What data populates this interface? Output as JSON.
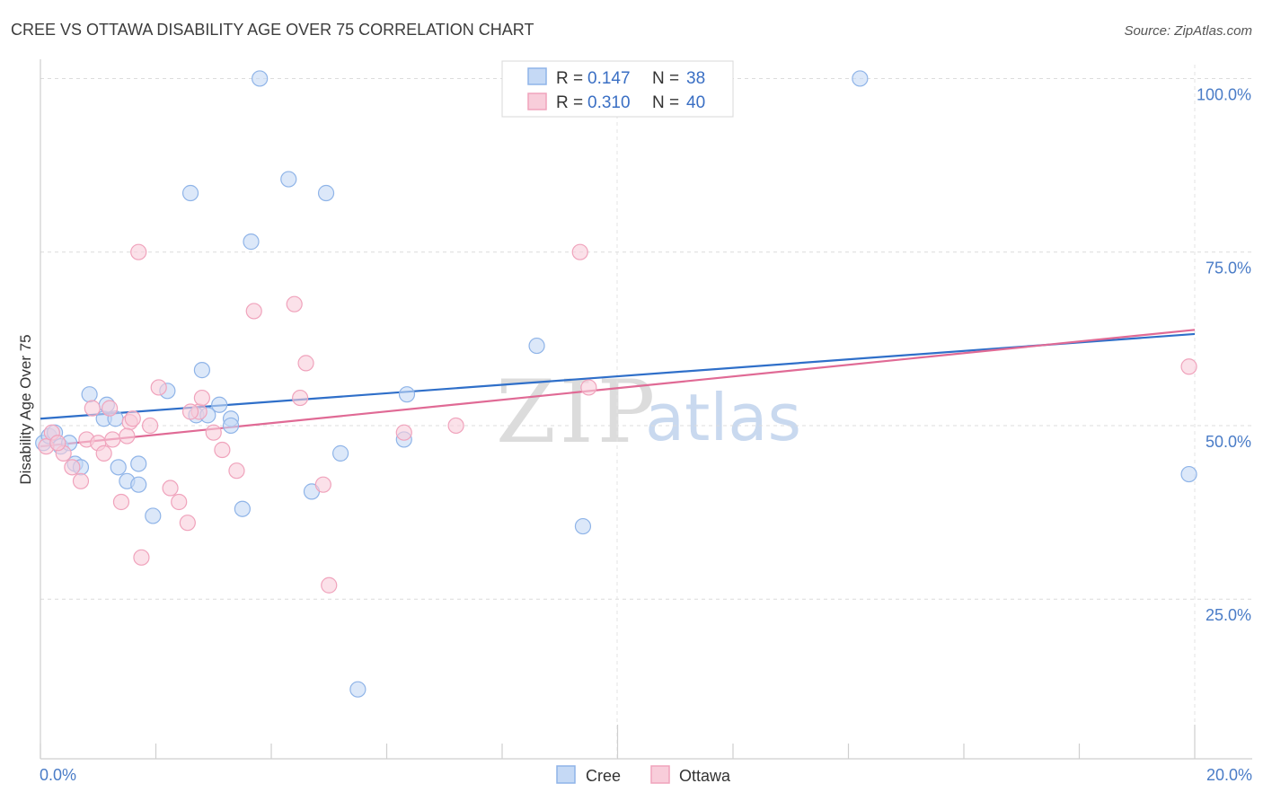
{
  "chart_data": {
    "type": "scatter",
    "title": "CREE VS OTTAWA DISABILITY AGE OVER 75 CORRELATION CHART",
    "source": "Source: ZipAtlas.com",
    "xlabel": "",
    "ylabel": "Disability Age Over 75",
    "xlim": [
      0,
      20
    ],
    "ylim": [
      2,
      102
    ],
    "x_tick_labels": [
      "0.0%",
      "20.0%"
    ],
    "y_ticks": [
      25,
      50,
      75,
      100
    ],
    "y_tick_labels": [
      "25.0%",
      "50.0%",
      "75.0%",
      "100.0%"
    ],
    "grid": true,
    "watermark": {
      "zip": "ZIP",
      "atlas": "atlas"
    },
    "legend": {
      "position": "top-center",
      "entries": [
        {
          "r_label": "R = ",
          "r_value": "0.147",
          "n_label": "N = ",
          "n_value": "38"
        },
        {
          "r_label": "R = ",
          "r_value": "0.310",
          "n_label": "N = ",
          "n_value": "40"
        }
      ]
    },
    "bottom_legend": [
      "Cree",
      "Ottawa"
    ],
    "series": [
      {
        "name": "Cree",
        "color": "#8fb4e8",
        "fill": "#c5d9f5",
        "line_color": "#2f6fc9",
        "trend": {
          "x": [
            0,
            20
          ],
          "y": [
            51,
            63.2
          ]
        },
        "points": [
          [
            0.05,
            47.5
          ],
          [
            0.15,
            48.5
          ],
          [
            0.25,
            49
          ],
          [
            0.35,
            47
          ],
          [
            0.5,
            47.5
          ],
          [
            0.6,
            44.5
          ],
          [
            0.7,
            44
          ],
          [
            0.85,
            54.5
          ],
          [
            1.1,
            51
          ],
          [
            1.15,
            53
          ],
          [
            1.3,
            51
          ],
          [
            1.35,
            44
          ],
          [
            1.5,
            42
          ],
          [
            1.7,
            44.5
          ],
          [
            1.7,
            41.5
          ],
          [
            1.95,
            37
          ],
          [
            2.2,
            55
          ],
          [
            2.6,
            83.5
          ],
          [
            2.7,
            51.5
          ],
          [
            2.8,
            58
          ],
          [
            2.9,
            51.5
          ],
          [
            3.1,
            53
          ],
          [
            3.3,
            51
          ],
          [
            3.3,
            50
          ],
          [
            3.5,
            38
          ],
          [
            3.65,
            76.5
          ],
          [
            3.8,
            100
          ],
          [
            4.3,
            85.5
          ],
          [
            4.7,
            40.5
          ],
          [
            4.95,
            83.5
          ],
          [
            5.2,
            46
          ],
          [
            5.5,
            12
          ],
          [
            6.3,
            48
          ],
          [
            6.35,
            54.5
          ],
          [
            8.6,
            61.5
          ],
          [
            9.4,
            35.5
          ],
          [
            14.2,
            100
          ],
          [
            19.9,
            43
          ]
        ]
      },
      {
        "name": "Ottawa",
        "color": "#f0a3bc",
        "fill": "#f8cdda",
        "line_color": "#e06a95",
        "trend": {
          "x": [
            0,
            20
          ],
          "y": [
            47,
            63.8
          ]
        },
        "points": [
          [
            0.1,
            47
          ],
          [
            0.2,
            49
          ],
          [
            0.4,
            46
          ],
          [
            0.55,
            44
          ],
          [
            0.7,
            42
          ],
          [
            0.8,
            48
          ],
          [
            0.9,
            52.5
          ],
          [
            1.0,
            47.5
          ],
          [
            1.1,
            46
          ],
          [
            1.2,
            52.5
          ],
          [
            1.25,
            48
          ],
          [
            1.4,
            39
          ],
          [
            1.55,
            50.5
          ],
          [
            1.6,
            51
          ],
          [
            1.7,
            75
          ],
          [
            1.75,
            31
          ],
          [
            1.9,
            50
          ],
          [
            2.05,
            55.5
          ],
          [
            2.25,
            41
          ],
          [
            2.4,
            39
          ],
          [
            2.55,
            36
          ],
          [
            2.75,
            52
          ],
          [
            2.8,
            54
          ],
          [
            3.0,
            49
          ],
          [
            3.15,
            46.5
          ],
          [
            3.4,
            43.5
          ],
          [
            3.7,
            66.5
          ],
          [
            4.4,
            67.5
          ],
          [
            4.5,
            54
          ],
          [
            4.6,
            59
          ],
          [
            4.9,
            41.5
          ],
          [
            5.0,
            27
          ],
          [
            6.3,
            49
          ],
          [
            7.2,
            50
          ],
          [
            9.35,
            75
          ],
          [
            9.5,
            55.5
          ],
          [
            19.9,
            58.5
          ],
          [
            0.3,
            47.5
          ],
          [
            1.5,
            48.5
          ],
          [
            2.6,
            52
          ]
        ]
      }
    ]
  }
}
